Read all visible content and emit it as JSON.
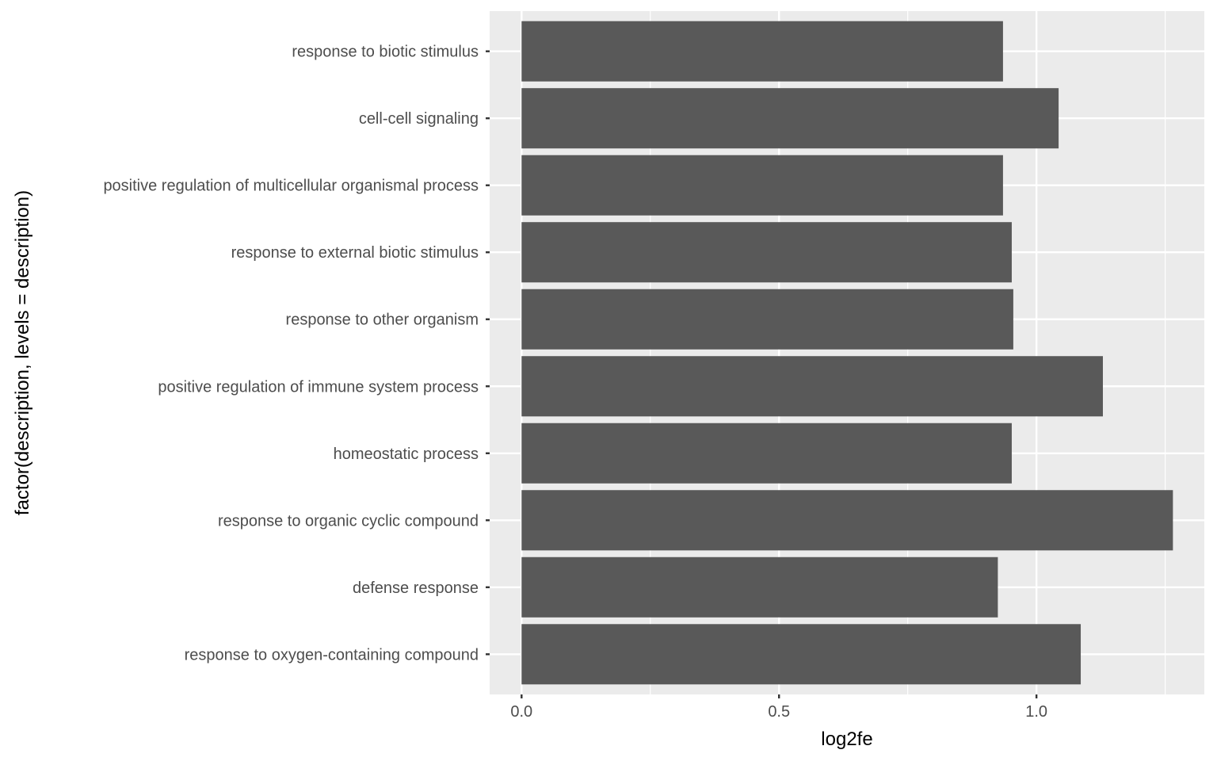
{
  "chart_data": {
    "type": "bar",
    "orientation": "horizontal",
    "title": "",
    "xlabel": "log2fe",
    "ylabel": "factor(description, levels = description)",
    "categories": [
      "response to biotic stimulus",
      "cell-cell signaling",
      "positive regulation of multicellular organismal process",
      "response to external biotic stimulus",
      "response to other organism",
      "positive regulation of immune system process",
      "homeostatic process",
      "response to organic cyclic compound",
      "defense response",
      "response to oxygen-containing compound"
    ],
    "values": [
      0.935,
      1.043,
      0.935,
      0.952,
      0.955,
      1.129,
      0.952,
      1.265,
      0.925,
      1.086
    ],
    "xlim": [
      -0.062,
      1.326
    ],
    "xticks": [
      0.0,
      0.5,
      1.0
    ],
    "xtick_labels": [
      "0.0",
      "0.5",
      "1.0"
    ],
    "grid": true,
    "colors": {
      "bar": "#595959",
      "panel": "#ebebeb",
      "grid": "#ffffff"
    }
  }
}
